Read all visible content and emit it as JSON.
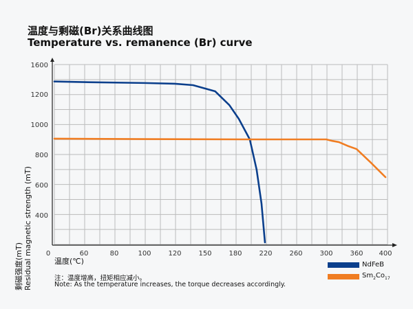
{
  "title_cn": "温度与剩磁(Br)关系曲线图",
  "title_en": "Temperature vs. remanence (Br) curve",
  "note_cn": "注：温度增高，扭矩相应减小。",
  "note_en": "Note: As the temperature increases, the torque decreases accordingly.",
  "chart_data": {
    "type": "line",
    "title": "Temperature vs. remanence (Br) curve",
    "xlabel": "温度(℃)",
    "ylabel_cn": "剩磁强度(mT)",
    "ylabel_en": "Residual magnetic strength (mT)",
    "x_ticks": [
      "0",
      "60",
      "80",
      "100",
      "120",
      "150",
      "180",
      "220",
      "260",
      "300",
      "360",
      "400"
    ],
    "y_ticks": [
      "400",
      "600",
      "800",
      "1000",
      "1200",
      "1600"
    ],
    "grid": true,
    "legend": "bottom-right",
    "series": [
      {
        "name": "NdFeB",
        "color": "#0b3f8c",
        "x": [
          0,
          60,
          100,
          120,
          138,
          160,
          174,
          184.5,
          199,
          208,
          214.5,
          219
        ],
        "y": [
          1370,
          1362,
          1350,
          1340,
          1321,
          1237,
          1127,
          1036,
          900,
          700,
          474,
          214
        ]
      },
      {
        "name": "Sm2Co17",
        "name_main": "Sm",
        "name_sub1": "2",
        "name_mid": "Co",
        "name_sub2": "17",
        "color": "#f07d22",
        "x": [
          0,
          100,
          200,
          300,
          312,
          325,
          344,
          360,
          380,
          400
        ],
        "y": [
          905,
          902,
          900,
          900,
          890,
          882,
          855,
          836,
          745,
          650
        ]
      }
    ]
  }
}
